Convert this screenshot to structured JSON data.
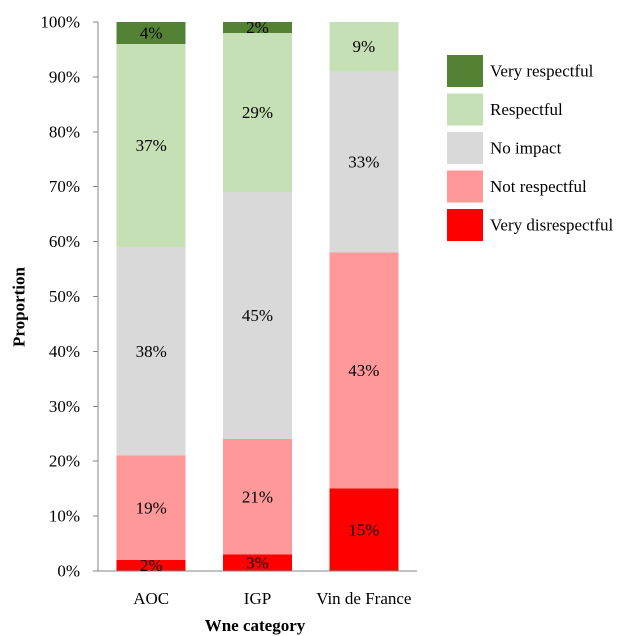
{
  "chart_data": {
    "type": "bar",
    "stacked": true,
    "categories": [
      "AOC",
      "IGP",
      "Vin de France"
    ],
    "series": [
      {
        "name": "Very disrespectful",
        "color": "#ff0000",
        "values": [
          2,
          3,
          15
        ],
        "labels": [
          "2%",
          "3%",
          "15%"
        ]
      },
      {
        "name": "Not respectful",
        "color": "#ff9999",
        "values": [
          19,
          21,
          43
        ],
        "labels": [
          "19%",
          "21%",
          "43%"
        ]
      },
      {
        "name": "No impact",
        "color": "#d9d9d9",
        "values": [
          38,
          45,
          33
        ],
        "labels": [
          "38%",
          "45%",
          "33%"
        ]
      },
      {
        "name": "Respectful",
        "color": "#c5e0b4",
        "values": [
          37,
          29,
          9
        ],
        "labels": [
          "37%",
          "29%",
          "9%"
        ]
      },
      {
        "name": "Very respectful",
        "color": "#548235",
        "values": [
          4,
          2,
          0
        ],
        "labels": [
          "4%",
          "2%",
          null
        ]
      }
    ],
    "xlabel": "Wne category",
    "ylabel": "Proportion",
    "ylim": [
      0,
      100
    ],
    "yticks": [
      {
        "value": 0,
        "label": "0%"
      },
      {
        "value": 10,
        "label": "10%"
      },
      {
        "value": 20,
        "label": "20%"
      },
      {
        "value": 30,
        "label": "30%"
      },
      {
        "value": 40,
        "label": "40%"
      },
      {
        "value": 50,
        "label": "50%"
      },
      {
        "value": 60,
        "label": "60%"
      },
      {
        "value": 70,
        "label": "70%"
      },
      {
        "value": 80,
        "label": "80%"
      },
      {
        "value": 90,
        "label": "90%"
      },
      {
        "value": 100,
        "label": "100%"
      }
    ],
    "legend": "right",
    "grid": false
  }
}
